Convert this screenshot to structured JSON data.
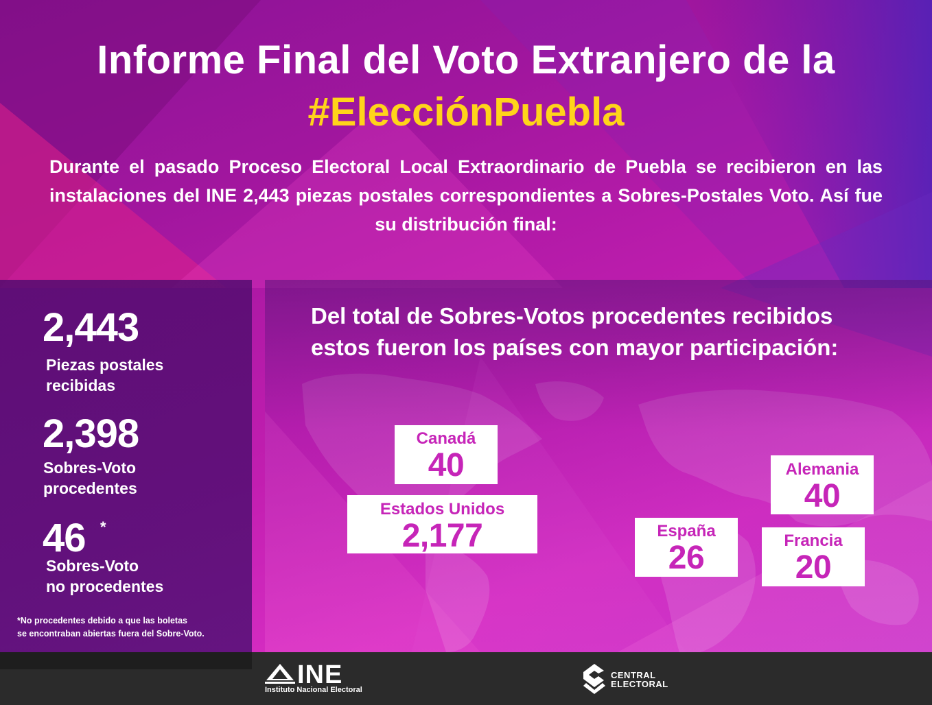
{
  "header": {
    "title": "Informe Final del Voto Extranjero de la",
    "hashtag": "#EleccionPuebla",
    "intro": "Durante el pasado Proceso Electoral Local Extraordinario de Puebla se recibieron en las instalaciones del INE 2,443 piezas postales correspondientes a Sobres-Postales Voto. Así fue su distribución final:"
  },
  "stats": [
    {
      "value": "2,443",
      "label": "Piezas postales\nrecibidas"
    },
    {
      "value": "2,398",
      "label": "Sobres-Voto\nprocedentes"
    },
    {
      "value": "46",
      "label": "Sobres-Voto\nno procedentes",
      "mark": "*"
    }
  ],
  "footnote": "*No procedentes debido a que las boletas\nse encontraban abiertas fuera del Sobre-Voto.",
  "countries_heading": "Del total de Sobres-Votos procedentes recibidos\nestos fueron los países con mayor participación:",
  "countries": [
    {
      "name": "Canadá",
      "value": "40"
    },
    {
      "name": "Estados Unidos",
      "value": "2,177"
    },
    {
      "name": "Alemania",
      "value": "40"
    },
    {
      "name": "España",
      "value": "26"
    },
    {
      "name": "Francia",
      "value": "20"
    }
  ],
  "footer": {
    "ine_logo": "INE",
    "ine_subtitle": "Instituto Nacional Electoral",
    "central_logo": "CENTRAL\nELECTORAL"
  },
  "colors": {
    "accent_yellow": "#ffd41a",
    "box_text_magenta": "#c625b8",
    "footer_bg": "#2b2b2b"
  }
}
